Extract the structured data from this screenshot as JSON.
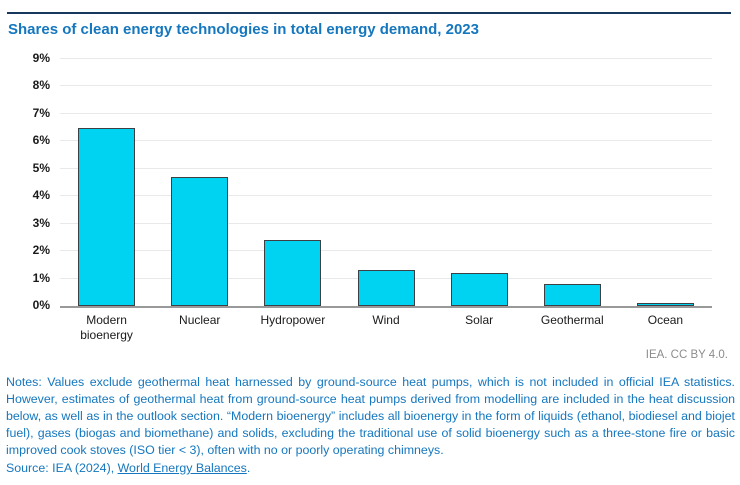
{
  "header": {
    "title": "Shares of clean energy technologies in total energy demand, 2023"
  },
  "chart_data": {
    "type": "bar",
    "title": "Shares of clean energy technologies in total energy demand, 2023",
    "categories": [
      "Modern bioenergy",
      "Nuclear",
      "Hydropower",
      "Wind",
      "Solar",
      "Geothermal",
      "Ocean"
    ],
    "values": [
      6.5,
      4.7,
      2.4,
      1.3,
      1.2,
      0.8,
      0.05
    ],
    "unit": "%",
    "xlabel": "",
    "ylabel": "",
    "ylim": [
      0,
      9
    ],
    "ytick_step": 1,
    "ytick_labels": [
      "0%",
      "1%",
      "2%",
      "3%",
      "4%",
      "5%",
      "6%",
      "7%",
      "8%",
      "9%"
    ],
    "grid": true,
    "legend": "none",
    "bar_color": "#00d2f2",
    "bar_border_color": "#3c4044"
  },
  "attribution": "IEA. CC BY 4.0.",
  "notes": {
    "text": "Notes: Values exclude geothermal heat harnessed by ground-source heat pumps, which is not included in official IEA statistics. However, estimates of geothermal heat from ground-source heat pumps derived from modelling are included in the heat discussion below, as well as in the outlook section. “Modern bioenergy” includes all bioenergy in the form of liquids (ethanol, biodiesel and biojet fuel), gases (biogas and biomethane) and solids, excluding the traditional use of solid bioenergy such as a three-stone fire or basic improved cook stoves (ISO tier < 3), often with no or poorly operating chimneys."
  },
  "source": {
    "prefix": "Source: IEA (2024), ",
    "link_text": "World Energy Balances",
    "suffix": "."
  },
  "colors": {
    "accent_blue": "#1577be",
    "rule_navy": "#17375d",
    "axis_gray": "#999999",
    "gridline_gray": "#e9e9e9"
  }
}
